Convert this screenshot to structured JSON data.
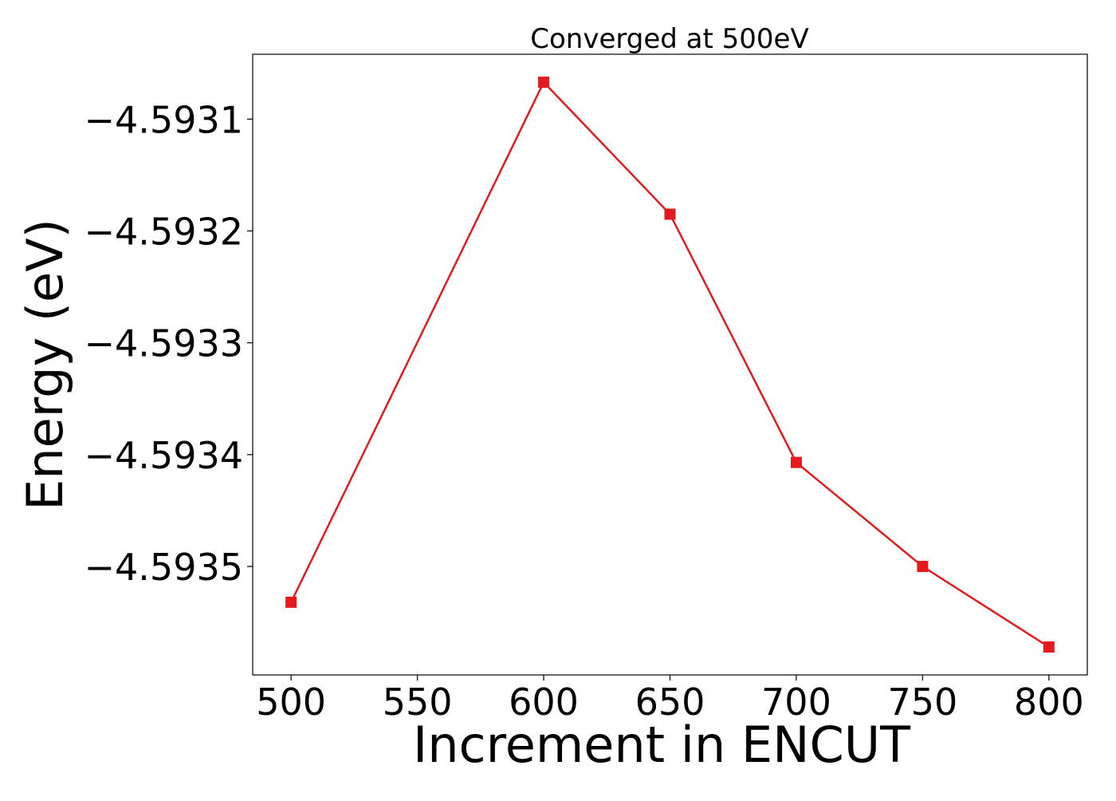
{
  "chart_data": {
    "type": "line",
    "title": "Converged at 500eV",
    "xlabel": "Increment in ENCUT",
    "ylabel": "Energy (eV)",
    "x": [
      500,
      600,
      650,
      700,
      750,
      800
    ],
    "series": [
      {
        "values": [
          -4.593532,
          -4.593067,
          -4.593185,
          -4.593407,
          -4.5935,
          -4.593572
        ],
        "color": "#e41a1c",
        "marker": "square"
      }
    ],
    "xticks": [
      500,
      550,
      600,
      650,
      700,
      750,
      800
    ],
    "xtick_labels": [
      "500",
      "550",
      "600",
      "650",
      "700",
      "750",
      "800"
    ],
    "yticks": [
      -4.5931,
      -4.5932,
      -4.5933,
      -4.5934,
      -4.5935
    ],
    "ytick_labels": [
      "−4.5931",
      "−4.5932",
      "−4.5933",
      "−4.5934",
      "−4.5935"
    ],
    "xlim": [
      484.8,
      815.2
    ],
    "ylim": [
      -4.593597,
      -4.593042
    ],
    "grid": false,
    "legend": "none"
  }
}
